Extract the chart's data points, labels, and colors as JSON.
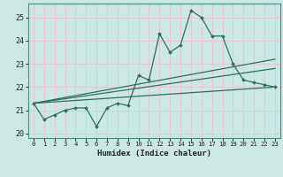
{
  "xlabel": "Humidex (Indice chaleur)",
  "bg_color": "#cce8e4",
  "grid_color": "#e8c8c8",
  "line_color": "#2d6e62",
  "xlim": [
    -0.5,
    23.5
  ],
  "ylim": [
    19.8,
    25.6
  ],
  "xticks": [
    0,
    1,
    2,
    3,
    4,
    5,
    6,
    7,
    8,
    9,
    10,
    11,
    12,
    13,
    14,
    15,
    16,
    17,
    18,
    19,
    20,
    21,
    22,
    23
  ],
  "yticks": [
    20,
    21,
    22,
    23,
    24,
    25
  ],
  "main_series": {
    "x": [
      0,
      1,
      2,
      3,
      4,
      5,
      6,
      7,
      8,
      9,
      10,
      11,
      12,
      13,
      14,
      15,
      16,
      17,
      18,
      19,
      20,
      21,
      22,
      23
    ],
    "y": [
      21.3,
      20.6,
      20.8,
      21.0,
      21.1,
      21.1,
      20.3,
      21.1,
      21.3,
      21.2,
      22.5,
      22.3,
      24.3,
      23.5,
      23.8,
      25.3,
      25.0,
      24.2,
      24.2,
      23.0,
      22.3,
      22.2,
      22.1,
      22.0
    ]
  },
  "fan_lines": [
    {
      "x0": 0,
      "y0": 21.3,
      "x1": 23,
      "y1": 22.0
    },
    {
      "x0": 0,
      "y0": 21.3,
      "x1": 23,
      "y1": 22.8
    },
    {
      "x0": 0,
      "y0": 21.3,
      "x1": 23,
      "y1": 23.2
    }
  ]
}
